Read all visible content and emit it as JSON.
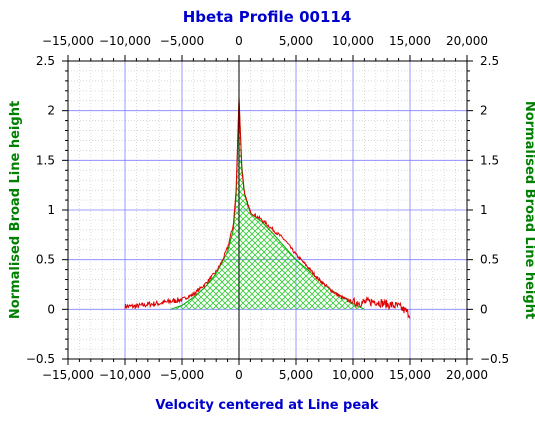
{
  "chart_data": {
    "type": "line",
    "title": "Hbeta Profile 00114",
    "xlabel": "Velocity centered at Line peak",
    "ylabel": "Normalised Broad Line height",
    "xlim": [
      -15000,
      20000
    ],
    "ylim": [
      -0.5,
      2.5
    ],
    "x_ticks": [
      -15000,
      -10000,
      -5000,
      0,
      5000,
      10000,
      15000,
      20000
    ],
    "x_tick_labels": [
      "−15,000",
      "−10,000",
      "−5,000",
      "0",
      "5,000",
      "10,000",
      "15,000",
      "20,000"
    ],
    "y_ticks": [
      -0.5,
      0,
      0.5,
      1,
      1.5,
      2,
      2.5
    ],
    "y_tick_labels": [
      "−0.5",
      "0",
      "0.5",
      "1",
      "1.5",
      "2",
      "2.5"
    ],
    "grid": true,
    "colors": {
      "observed": "#dd0000",
      "model_line": "#00aa00",
      "model_fill": "#33cc33",
      "major_grid": "#8080ff",
      "minor_grid": "#cccccc",
      "zero_line": "#000000"
    },
    "series": [
      {
        "style": "hatched-area",
        "x": [
          -6000,
          -5000,
          -4000,
          -3000,
          -2000,
          -1000,
          -500,
          -250,
          0,
          250,
          500,
          1000,
          2000,
          3000,
          4000,
          5000,
          6000,
          8000,
          10000,
          11000
        ],
        "y": [
          0,
          0.04,
          0.12,
          0.22,
          0.36,
          0.58,
          0.8,
          1.15,
          2.1,
          1.45,
          1.15,
          0.97,
          0.88,
          0.76,
          0.63,
          0.5,
          0.4,
          0.2,
          0.06,
          0
        ]
      },
      {
        "style": "noisy-line",
        "x": [
          -10000,
          -9000,
          -8000,
          -7000,
          -6000,
          -5000,
          -4000,
          -3000,
          -2000,
          -1500,
          -1000,
          -500,
          -250,
          0,
          250,
          500,
          1000,
          2000,
          3000,
          4000,
          5000,
          6000,
          7000,
          8000,
          9000,
          10000,
          11000,
          12000,
          13000,
          14000,
          15000
        ],
        "y": [
          0.03,
          0.03,
          0.05,
          0.06,
          0.08,
          0.1,
          0.15,
          0.25,
          0.38,
          0.48,
          0.62,
          0.85,
          1.2,
          2.15,
          1.4,
          1.15,
          0.98,
          0.9,
          0.8,
          0.7,
          0.55,
          0.43,
          0.3,
          0.2,
          0.12,
          0.07,
          0.07,
          0.08,
          0.05,
          0.03,
          -0.05
        ]
      }
    ]
  }
}
